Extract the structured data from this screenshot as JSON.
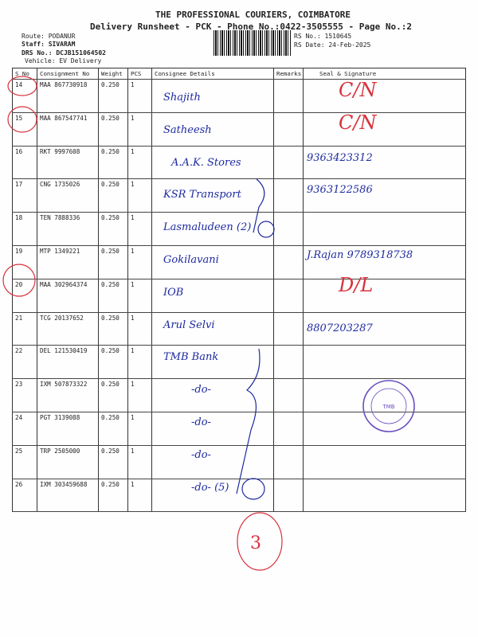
{
  "header": {
    "company": "THE PROFESSIONAL COURIERS, COIMBATORE",
    "subtitle": "Delivery Runsheet - PCK - Phone No.:0422-3505555 - Page No.:2",
    "route": "Route: PODANUR",
    "staff": "Staff: SIVARAM",
    "drs_no": "DRS No.: DCJB151064502",
    "vehicle": "Vehicle: EV Delivery",
    "rs_no": "RS No.: 1510645",
    "rs_date": "RS Date: 24-Feb-2025"
  },
  "table": {
    "columns": [
      "S No",
      "Consignment No",
      "Weight",
      "PCS",
      "Consignee Details",
      "Remarks",
      "Seal & Signature"
    ],
    "rows": [
      {
        "sno": "14",
        "cn": "MAA 867730918",
        "weight": "0.250",
        "pcs": "1",
        "consignee": "Shajith",
        "seal": "C/N"
      },
      {
        "sno": "15",
        "cn": "MAA 867547741",
        "weight": "0.250",
        "pcs": "1",
        "consignee": "Satheesh",
        "seal": "C/N"
      },
      {
        "sno": "16",
        "cn": "RKT 9997608",
        "weight": "0.250",
        "pcs": "1",
        "consignee": "A.A.K. Stores",
        "seal": "9363423312"
      },
      {
        "sno": "17",
        "cn": "CNG 1735026",
        "weight": "0.250",
        "pcs": "1",
        "consignee": "KSR Transport",
        "seal": "9363122586"
      },
      {
        "sno": "18",
        "cn": "TEN 7888336",
        "weight": "0.250",
        "pcs": "1",
        "consignee": "Lasmaludeen (2)",
        "seal": ""
      },
      {
        "sno": "19",
        "cn": "MTP 1349221",
        "weight": "0.250",
        "pcs": "1",
        "consignee": "Gokilavani",
        "seal": "J.Rajan 9789318738"
      },
      {
        "sno": "20",
        "cn": "MAA 302964374",
        "weight": "0.250",
        "pcs": "1",
        "consignee": "IOB",
        "seal": "D/L"
      },
      {
        "sno": "21",
        "cn": "TCG 20137652",
        "weight": "0.250",
        "pcs": "1",
        "consignee": "Arul Selvi",
        "seal": "8807203287"
      },
      {
        "sno": "22",
        "cn": "DEL 121530419",
        "weight": "0.250",
        "pcs": "1",
        "consignee": "TMB Bank",
        "seal": ""
      },
      {
        "sno": "23",
        "cn": "IXM 507873322",
        "weight": "0.250",
        "pcs": "1",
        "consignee": "-do-",
        "seal": ""
      },
      {
        "sno": "24",
        "cn": "PGT 3139088",
        "weight": "0.250",
        "pcs": "1",
        "consignee": "-do-",
        "seal": ""
      },
      {
        "sno": "25",
        "cn": "TRP 2505000",
        "weight": "0.250",
        "pcs": "1",
        "consignee": "-do-",
        "seal": ""
      },
      {
        "sno": "26",
        "cn": "IXM 303459688",
        "weight": "0.250",
        "pcs": "1",
        "consignee": "-do- (5)",
        "seal": ""
      }
    ]
  },
  "stamp": {
    "text": "Tamilnad Mercantile Bank Ltd.",
    "color": "#6a4fc0"
  },
  "annotations": {
    "page_count": "3"
  },
  "colors": {
    "ink_blue": "#1d2aa0",
    "ink_red": "#d8323c"
  }
}
